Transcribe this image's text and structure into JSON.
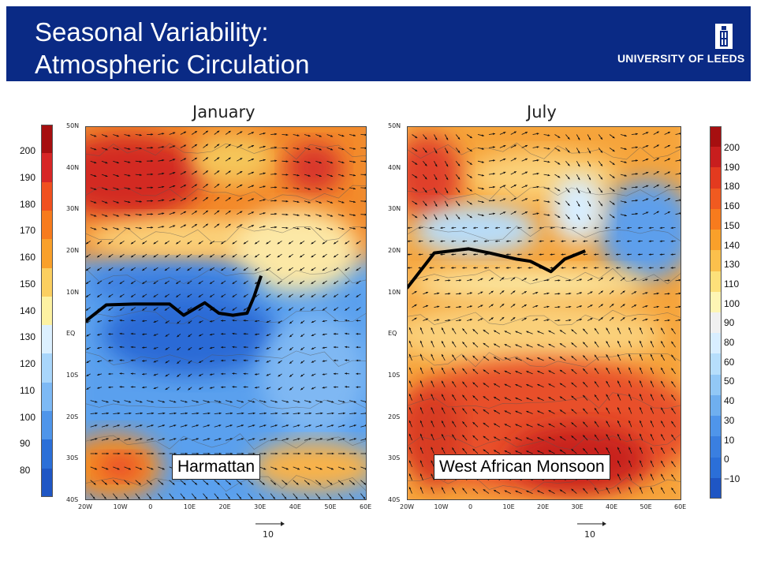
{
  "header": {
    "title_line1": "Seasonal Variability:",
    "title_line2": "Atmospheric Circulation",
    "logo_text": "UNIVERSITY OF LEEDS"
  },
  "colors": {
    "banner": "#0a2a85",
    "itcz_line": "#000000"
  },
  "chart_data": [
    {
      "type": "heatmap",
      "title": "January",
      "x_ticks": [
        "20W",
        "10W",
        "0",
        "10E",
        "20E",
        "30E",
        "40E",
        "50E",
        "60E"
      ],
      "y_ticks": [
        "50N",
        "40N",
        "30N",
        "20N",
        "10N",
        "EQ",
        "10S",
        "20S",
        "30S",
        "40S"
      ],
      "xlim": [
        -20,
        60
      ],
      "ylim": [
        -40,
        50
      ],
      "colorbar": {
        "labels": [
          "200",
          "190",
          "180",
          "170",
          "160",
          "150",
          "140",
          "130",
          "120",
          "110",
          "100",
          "90",
          "80"
        ],
        "colors": [
          "#a60f10",
          "#d72626",
          "#f0501f",
          "#f77b1d",
          "#f9a02a",
          "#fbcf60",
          "#fdf2a2",
          "#dcf0ff",
          "#a9d6fb",
          "#7db9f5",
          "#4f95ea",
          "#2b6fd8",
          "#1f56c4"
        ]
      },
      "line": {
        "name": "",
        "lon": [
          -20,
          -14,
          -6,
          4,
          8,
          14,
          18,
          22,
          26,
          28,
          30
        ],
        "lat": [
          3,
          7,
          7.2,
          7.2,
          4.5,
          7.5,
          5,
          4.5,
          5,
          9,
          14
        ]
      },
      "annotation": "Harmattan",
      "reference_vector": "10"
    },
    {
      "type": "heatmap",
      "title": "July",
      "x_ticks": [
        "20W",
        "10W",
        "0",
        "10E",
        "20E",
        "30E",
        "40E",
        "50E",
        "60E"
      ],
      "y_ticks": [
        "50N",
        "40N",
        "30N",
        "20N",
        "10N",
        "EQ",
        "10S",
        "20S",
        "30S",
        "40S"
      ],
      "xlim": [
        -20,
        60
      ],
      "ylim": [
        -40,
        50
      ],
      "colorbar": {
        "labels": [
          "200",
          "190",
          "180",
          "160",
          "150",
          "140",
          "130",
          "110",
          "100",
          "90",
          "80",
          "60",
          "50",
          "40",
          "30",
          "10",
          "0",
          "−10"
        ],
        "colors": [
          "#a60f10",
          "#c81e1e",
          "#e33a1f",
          "#f05a20",
          "#f77b1d",
          "#f9a02a",
          "#fbc04c",
          "#fde07a",
          "#fef5b4",
          "#f0f0f0",
          "#d8eeff",
          "#b6defb",
          "#92c8f6",
          "#6fafef",
          "#4f95ea",
          "#3a7fe0",
          "#2b6fd8",
          "#1f56c4"
        ]
      },
      "line": {
        "name": "",
        "lon": [
          -20,
          -12,
          -2,
          4,
          12,
          16,
          22,
          26,
          32
        ],
        "lat": [
          11,
          19.5,
          20.5,
          19.5,
          18,
          17.5,
          15,
          18,
          20
        ]
      },
      "annotation": "West African Monsoon",
      "reference_vector": "10"
    }
  ]
}
